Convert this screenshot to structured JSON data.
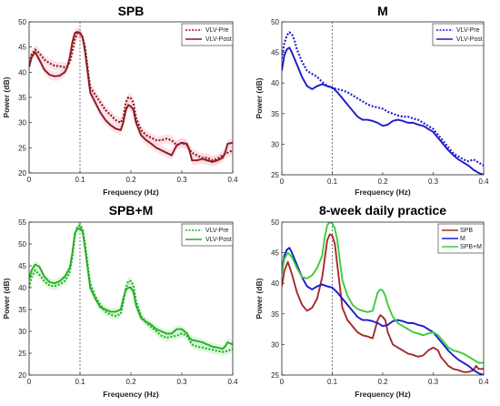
{
  "chart_data": [
    {
      "type": "line",
      "title": "SPB",
      "xlabel": "Frequency (Hz)",
      "ylabel": "Power (dB)",
      "xlim": [
        0,
        0.4
      ],
      "ylim": [
        20,
        50
      ],
      "xticks": [
        "0",
        "0.1",
        "0.2",
        "0.3",
        "0.4"
      ],
      "xtick_values": [
        0,
        0.1,
        0.2,
        0.3,
        0.4
      ],
      "yticks": [
        "20",
        "25",
        "30",
        "35",
        "40",
        "45",
        "50"
      ],
      "ytick_values": [
        20,
        25,
        30,
        35,
        40,
        45,
        50
      ],
      "vline": 0.1,
      "legend_position": "top-right",
      "shaded_bands": true,
      "series": [
        {
          "name": "VLV-Pre",
          "color": "#8b1a1a",
          "style": "dotted",
          "x": [
            0,
            0.005,
            0.012,
            0.02,
            0.03,
            0.04,
            0.05,
            0.06,
            0.07,
            0.075,
            0.08,
            0.085,
            0.09,
            0.095,
            0.1,
            0.105,
            0.11,
            0.12,
            0.13,
            0.14,
            0.15,
            0.16,
            0.17,
            0.18,
            0.185,
            0.19,
            0.195,
            0.2,
            0.205,
            0.21,
            0.22,
            0.23,
            0.24,
            0.25,
            0.26,
            0.27,
            0.28,
            0.29,
            0.3,
            0.31,
            0.32,
            0.33,
            0.34,
            0.35,
            0.36,
            0.37,
            0.38,
            0.39,
            0.4
          ],
          "y": [
            42,
            43.5,
            44.5,
            43.8,
            42.5,
            41.8,
            41.3,
            41.2,
            41.0,
            41.2,
            42.0,
            44.0,
            46.5,
            47.8,
            47.6,
            47.0,
            45.0,
            37.0,
            35.5,
            34.0,
            32.5,
            31.5,
            30.5,
            30.0,
            31.0,
            34.0,
            35.0,
            34.8,
            34.0,
            31.0,
            28.5,
            27.5,
            27.0,
            26.5,
            26.5,
            26.8,
            26.5,
            25.5,
            26.0,
            25.5,
            24.0,
            23.5,
            23.0,
            23.0,
            22.5,
            22.8,
            23.5,
            24.0,
            24.5
          ]
        },
        {
          "name": "VLV-Post",
          "color": "#8b1a1a",
          "style": "solid",
          "x": [
            0,
            0.005,
            0.012,
            0.02,
            0.03,
            0.04,
            0.05,
            0.06,
            0.07,
            0.075,
            0.08,
            0.085,
            0.09,
            0.095,
            0.1,
            0.105,
            0.11,
            0.12,
            0.13,
            0.14,
            0.15,
            0.16,
            0.17,
            0.18,
            0.185,
            0.19,
            0.195,
            0.2,
            0.205,
            0.21,
            0.22,
            0.23,
            0.24,
            0.25,
            0.26,
            0.27,
            0.28,
            0.29,
            0.3,
            0.31,
            0.315,
            0.32,
            0.33,
            0.34,
            0.35,
            0.36,
            0.37,
            0.38,
            0.385,
            0.39,
            0.4
          ],
          "y": [
            41,
            43.0,
            44.0,
            42.5,
            40.5,
            39.5,
            39.2,
            39.3,
            40.0,
            41.0,
            43.0,
            46.0,
            47.8,
            48.0,
            47.8,
            47.0,
            44.0,
            36.0,
            34.0,
            32.0,
            30.5,
            29.5,
            28.8,
            28.5,
            30.0,
            32.5,
            33.5,
            33.2,
            32.5,
            30.0,
            27.5,
            26.5,
            25.8,
            25.0,
            24.5,
            24.0,
            23.5,
            25.5,
            26.0,
            25.8,
            24.5,
            22.5,
            22.5,
            22.8,
            22.5,
            22.2,
            22.5,
            23.0,
            24.0,
            25.8,
            26.0
          ]
        }
      ]
    },
    {
      "type": "line",
      "title": "M",
      "xlabel": "Frequency (Hz)",
      "ylabel": "Power (dB)",
      "xlim": [
        0,
        0.4
      ],
      "ylim": [
        25,
        50
      ],
      "xticks": [
        "0",
        "0.1",
        "0.2",
        "0.3",
        "0.4"
      ],
      "xtick_values": [
        0,
        0.1,
        0.2,
        0.3,
        0.4
      ],
      "yticks": [
        "25",
        "30",
        "35",
        "40",
        "45",
        "50"
      ],
      "ytick_values": [
        25,
        30,
        35,
        40,
        45,
        50
      ],
      "vline": 0.1,
      "legend_position": "top-right",
      "shaded_bands": false,
      "series": [
        {
          "name": "VLV-Pre",
          "color": "#1a1acd",
          "style": "dotted",
          "x": [
            0,
            0.005,
            0.01,
            0.015,
            0.02,
            0.025,
            0.03,
            0.04,
            0.05,
            0.06,
            0.07,
            0.08,
            0.09,
            0.1,
            0.11,
            0.12,
            0.13,
            0.14,
            0.15,
            0.16,
            0.17,
            0.18,
            0.19,
            0.2,
            0.21,
            0.22,
            0.23,
            0.24,
            0.25,
            0.26,
            0.27,
            0.28,
            0.29,
            0.3,
            0.31,
            0.32,
            0.33,
            0.34,
            0.35,
            0.36,
            0.37,
            0.38,
            0.39,
            0.4
          ],
          "y": [
            44,
            46.5,
            47.8,
            48.3,
            48.0,
            47.0,
            45.5,
            43.5,
            42.0,
            41.5,
            41.0,
            40.2,
            39.5,
            39.2,
            39.0,
            38.8,
            38.5,
            38.0,
            37.5,
            37.0,
            36.5,
            36.2,
            36.0,
            35.8,
            35.3,
            35.0,
            34.7,
            34.5,
            34.5,
            34.2,
            34.0,
            33.5,
            33.0,
            32.5,
            31.5,
            30.5,
            29.5,
            28.5,
            28.0,
            27.5,
            27.2,
            27.5,
            27.0,
            26.5
          ]
        },
        {
          "name": "VLV-Post",
          "color": "#1a1acd",
          "style": "solid",
          "x": [
            0,
            0.005,
            0.01,
            0.015,
            0.02,
            0.03,
            0.04,
            0.05,
            0.06,
            0.07,
            0.08,
            0.09,
            0.1,
            0.11,
            0.12,
            0.13,
            0.14,
            0.15,
            0.16,
            0.17,
            0.18,
            0.19,
            0.2,
            0.21,
            0.22,
            0.23,
            0.24,
            0.25,
            0.26,
            0.27,
            0.28,
            0.29,
            0.3,
            0.31,
            0.32,
            0.33,
            0.34,
            0.35,
            0.36,
            0.37,
            0.38,
            0.39,
            0.4
          ],
          "y": [
            42,
            44.5,
            45.5,
            45.8,
            45.0,
            43.0,
            41.0,
            39.5,
            39.0,
            39.5,
            39.8,
            39.5,
            39.3,
            38.5,
            37.5,
            36.5,
            35.5,
            34.5,
            34.0,
            34.0,
            33.8,
            33.5,
            33.0,
            33.2,
            33.8,
            34.0,
            33.8,
            33.5,
            33.5,
            33.2,
            33.0,
            32.5,
            32.0,
            31.0,
            30.0,
            29.0,
            28.2,
            27.5,
            27.0,
            26.5,
            25.8,
            25.3,
            25.0
          ]
        }
      ]
    },
    {
      "type": "line",
      "title": "SPB+M",
      "xlabel": "Frequency (Hz)",
      "ylabel": "Power (dB)",
      "xlim": [
        0,
        0.4
      ],
      "ylim": [
        20,
        55
      ],
      "xticks": [
        "0",
        "0.1",
        "0.2",
        "0.3",
        "0.4"
      ],
      "xtick_values": [
        0,
        0.1,
        0.2,
        0.3,
        0.4
      ],
      "yticks": [
        "20",
        "25",
        "30",
        "35",
        "40",
        "45",
        "50",
        "55"
      ],
      "ytick_values": [
        20,
        25,
        30,
        35,
        40,
        45,
        50,
        55
      ],
      "vline": 0.1,
      "legend_position": "top-right",
      "shaded_bands": true,
      "series": [
        {
          "name": "VLV-Pre",
          "color": "#22b022",
          "style": "dotted",
          "x": [
            0,
            0.005,
            0.012,
            0.02,
            0.03,
            0.04,
            0.05,
            0.06,
            0.07,
            0.08,
            0.085,
            0.09,
            0.095,
            0.1,
            0.105,
            0.11,
            0.12,
            0.13,
            0.14,
            0.15,
            0.16,
            0.17,
            0.18,
            0.185,
            0.19,
            0.195,
            0.2,
            0.205,
            0.21,
            0.22,
            0.23,
            0.24,
            0.25,
            0.26,
            0.27,
            0.28,
            0.29,
            0.3,
            0.31,
            0.32,
            0.33,
            0.34,
            0.35,
            0.36,
            0.37,
            0.38,
            0.39,
            0.4
          ],
          "y": [
            40,
            42.5,
            44.0,
            43.0,
            41.5,
            40.5,
            40.3,
            40.8,
            41.5,
            43.5,
            47.0,
            52.0,
            54.0,
            54.3,
            53.5,
            50.0,
            41.0,
            38.0,
            36.0,
            34.5,
            33.8,
            33.5,
            34.0,
            36.5,
            40.0,
            41.5,
            41.5,
            40.5,
            37.0,
            33.5,
            32.0,
            31.0,
            30.0,
            29.0,
            28.5,
            28.8,
            29.0,
            29.5,
            29.0,
            27.0,
            26.5,
            26.3,
            26.0,
            25.8,
            25.5,
            25.3,
            25.5,
            26.0
          ]
        },
        {
          "name": "VLV-Post",
          "color": "#22b022",
          "style": "solid",
          "x": [
            0,
            0.005,
            0.012,
            0.02,
            0.03,
            0.04,
            0.05,
            0.06,
            0.07,
            0.08,
            0.085,
            0.09,
            0.095,
            0.1,
            0.105,
            0.11,
            0.12,
            0.13,
            0.14,
            0.15,
            0.16,
            0.17,
            0.18,
            0.185,
            0.19,
            0.195,
            0.2,
            0.205,
            0.21,
            0.22,
            0.23,
            0.24,
            0.25,
            0.26,
            0.27,
            0.28,
            0.29,
            0.3,
            0.31,
            0.315,
            0.32,
            0.33,
            0.34,
            0.35,
            0.36,
            0.37,
            0.38,
            0.385,
            0.39,
            0.4
          ],
          "y": [
            42,
            44.0,
            45.3,
            44.8,
            42.5,
            41.3,
            41.0,
            41.5,
            42.5,
            44.5,
            48.0,
            52.5,
            53.5,
            53.5,
            53.0,
            49.0,
            40.0,
            37.5,
            35.5,
            35.0,
            34.5,
            34.5,
            35.0,
            37.5,
            39.5,
            40.0,
            40.0,
            39.0,
            36.0,
            33.0,
            32.2,
            31.5,
            30.5,
            30.0,
            29.5,
            29.5,
            30.5,
            30.5,
            29.5,
            28.5,
            28.0,
            27.8,
            27.5,
            27.0,
            26.5,
            26.3,
            26.0,
            26.5,
            27.5,
            27.0
          ]
        }
      ]
    },
    {
      "type": "line",
      "title": "8-week daily practice",
      "xlabel": "Frequency (Hz)",
      "ylabel": "Power (dB)",
      "xlim": [
        0,
        0.4
      ],
      "ylim": [
        25,
        50
      ],
      "xticks": [
        "0",
        "0.1",
        "0.2",
        "0.3",
        "0.4"
      ],
      "xtick_values": [
        0,
        0.1,
        0.2,
        0.3,
        0.4
      ],
      "yticks": [
        "25",
        "30",
        "35",
        "40",
        "45",
        "50"
      ],
      "ytick_values": [
        25,
        30,
        35,
        40,
        45,
        50
      ],
      "vline": 0.1,
      "legend_position": "top-right",
      "shaded_bands": false,
      "series": [
        {
          "name": "SPB",
          "color": "#a52a2a",
          "style": "solid",
          "x": [
            0,
            0.005,
            0.012,
            0.02,
            0.03,
            0.04,
            0.05,
            0.06,
            0.07,
            0.08,
            0.085,
            0.09,
            0.095,
            0.1,
            0.105,
            0.11,
            0.12,
            0.13,
            0.14,
            0.15,
            0.16,
            0.17,
            0.18,
            0.185,
            0.19,
            0.195,
            0.2,
            0.205,
            0.21,
            0.22,
            0.23,
            0.24,
            0.25,
            0.26,
            0.27,
            0.28,
            0.29,
            0.3,
            0.31,
            0.315,
            0.32,
            0.33,
            0.34,
            0.35,
            0.36,
            0.37,
            0.38,
            0.385,
            0.39,
            0.4
          ],
          "y": [
            39.5,
            42.0,
            43.5,
            41.5,
            38.5,
            36.5,
            35.5,
            36.0,
            37.5,
            41.0,
            44.0,
            47.0,
            48.0,
            47.8,
            46.5,
            43.0,
            36.0,
            34.0,
            33.0,
            32.0,
            31.5,
            31.3,
            31.0,
            32.5,
            34.0,
            34.8,
            34.5,
            34.0,
            32.0,
            30.0,
            29.5,
            29.0,
            28.5,
            28.3,
            28.0,
            28.2,
            29.0,
            29.5,
            29.0,
            28.0,
            27.5,
            26.5,
            26.0,
            25.8,
            25.5,
            25.5,
            25.8,
            26.5,
            26.0,
            26.0
          ]
        },
        {
          "name": "M",
          "color": "#1a1acd",
          "style": "solid",
          "x": [
            0,
            0.005,
            0.01,
            0.015,
            0.02,
            0.03,
            0.04,
            0.05,
            0.06,
            0.07,
            0.08,
            0.09,
            0.1,
            0.11,
            0.12,
            0.13,
            0.14,
            0.15,
            0.16,
            0.17,
            0.18,
            0.19,
            0.2,
            0.21,
            0.22,
            0.23,
            0.24,
            0.25,
            0.26,
            0.27,
            0.28,
            0.29,
            0.3,
            0.31,
            0.32,
            0.33,
            0.34,
            0.35,
            0.36,
            0.37,
            0.38,
            0.39,
            0.4
          ],
          "y": [
            42,
            44.5,
            45.5,
            45.8,
            45.0,
            43.0,
            41.0,
            39.5,
            39.0,
            39.5,
            39.8,
            39.5,
            39.3,
            38.5,
            37.5,
            36.5,
            35.5,
            34.5,
            34.0,
            34.0,
            33.8,
            33.5,
            33.0,
            33.2,
            33.8,
            34.0,
            33.8,
            33.5,
            33.5,
            33.2,
            33.0,
            32.5,
            32.0,
            31.0,
            30.0,
            29.0,
            28.2,
            27.5,
            27.0,
            26.5,
            25.8,
            25.3,
            25.0
          ]
        },
        {
          "name": "SPB+M",
          "color": "#3ccc3c",
          "style": "solid",
          "x": [
            0,
            0.005,
            0.012,
            0.02,
            0.03,
            0.04,
            0.05,
            0.06,
            0.07,
            0.08,
            0.085,
            0.09,
            0.095,
            0.1,
            0.105,
            0.11,
            0.12,
            0.13,
            0.14,
            0.15,
            0.16,
            0.17,
            0.18,
            0.185,
            0.19,
            0.195,
            0.2,
            0.205,
            0.21,
            0.22,
            0.23,
            0.24,
            0.25,
            0.26,
            0.27,
            0.28,
            0.29,
            0.3,
            0.31,
            0.32,
            0.33,
            0.34,
            0.35,
            0.36,
            0.37,
            0.38,
            0.39,
            0.4
          ],
          "y": [
            41.5,
            44.0,
            45.0,
            44.3,
            42.5,
            41.0,
            40.8,
            41.3,
            42.5,
            44.5,
            47.5,
            49.5,
            50.0,
            49.8,
            49.0,
            47.0,
            40.5,
            38.0,
            36.5,
            35.8,
            35.5,
            35.3,
            35.5,
            37.0,
            38.5,
            39.0,
            38.8,
            38.0,
            36.5,
            34.5,
            33.5,
            33.0,
            32.5,
            32.0,
            31.8,
            31.5,
            31.8,
            32.0,
            31.5,
            30.5,
            29.5,
            29.0,
            28.8,
            28.5,
            28.0,
            27.5,
            27.0,
            27.0
          ]
        }
      ]
    }
  ]
}
